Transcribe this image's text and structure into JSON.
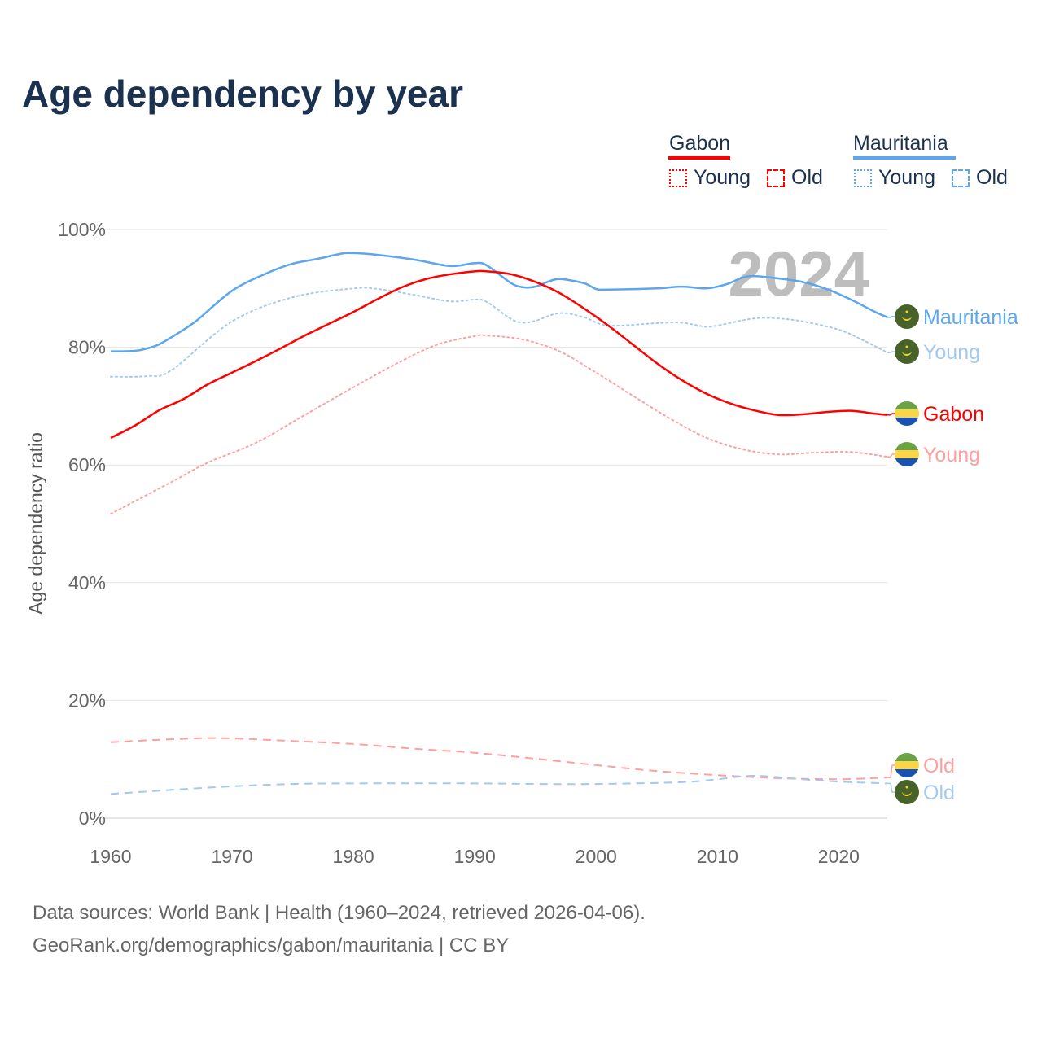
{
  "title": "Age dependency by year",
  "legend": {
    "gabon": {
      "label": "Gabon",
      "color": "#ff0000",
      "young": "Young",
      "old": "Old"
    },
    "mauritania": {
      "label": "Mauritania",
      "color": "#5ba6ec",
      "young": "Young",
      "old": "Old"
    }
  },
  "year_label": "2024",
  "footer": {
    "line1": "Data sources: World Bank | Health (1960–2024, retrieved 2026-04-06).",
    "line2": "GeoRank.org/demographics/gabon/mauritania | CC BY"
  },
  "chart_data": {
    "type": "line",
    "title": "Age dependency by year",
    "xlabel": "",
    "ylabel": "Age dependency ratio",
    "xlim": [
      1960,
      2024
    ],
    "ylim": [
      0,
      100
    ],
    "xticks": [
      1960,
      1970,
      1980,
      1990,
      2000,
      2010,
      2020
    ],
    "yticks": [
      0,
      20,
      40,
      60,
      80,
      100
    ],
    "ytick_labels": [
      "0%",
      "20%",
      "40%",
      "60%",
      "80%",
      "100%"
    ],
    "grid": true,
    "series": [
      {
        "name": "Mauritania",
        "end_label": "Mauritania",
        "color": "#5ba6ec",
        "style": "solid",
        "x": [
          1960,
          1962,
          1963,
          1964,
          1965,
          1967,
          1970,
          1973,
          1975,
          1977,
          1979,
          1980,
          1982,
          1985,
          1988,
          1990,
          1991,
          1993,
          1994,
          1995,
          1996,
          1997,
          1999,
          2000,
          2001,
          2005,
          2007,
          2009,
          2010,
          2011,
          2012,
          2013,
          2015,
          2017,
          2019,
          2021,
          2023,
          2024
        ],
        "y": [
          79.3,
          79.4,
          79.8,
          80.5,
          81.7,
          84.4,
          89.6,
          92.7,
          94.2,
          95.0,
          95.9,
          96.0,
          95.7,
          94.9,
          93.8,
          94.3,
          93.9,
          90.9,
          90.2,
          90.3,
          91.1,
          91.6,
          90.9,
          89.9,
          89.8,
          90.0,
          90.3,
          90.0,
          90.3,
          90.9,
          91.8,
          92.1,
          91.7,
          91.1,
          89.9,
          88.1,
          86.0,
          85.1
        ]
      },
      {
        "name": "Mauritania Young",
        "end_label": "Young",
        "color": "#a3c9f1",
        "style": "dotted",
        "x": [
          1960,
          1963,
          1965,
          1970,
          1975,
          1980,
          1982,
          1985,
          1988,
          1990,
          1991,
          1993,
          1994,
          1995,
          1997,
          1999,
          2001,
          2005,
          2007,
          2009,
          2010,
          2013,
          2015,
          2017,
          2020,
          2022,
          2024
        ],
        "y": [
          75.0,
          75.1,
          76.1,
          84.4,
          88.5,
          90.0,
          89.9,
          88.9,
          87.8,
          88.1,
          87.7,
          84.8,
          84.2,
          84.5,
          85.8,
          85.1,
          83.7,
          84.1,
          84.2,
          83.5,
          83.7,
          84.9,
          84.9,
          84.4,
          83.0,
          81.2,
          79.1
        ]
      },
      {
        "name": "Gabon",
        "end_label": "Gabon",
        "color": "#ff0000",
        "style": "solid",
        "x": [
          1960,
          1962,
          1964,
          1966,
          1968,
          1970,
          1972,
          1974,
          1976,
          1978,
          1980,
          1982,
          1984,
          1986,
          1988,
          1990,
          1991,
          1993,
          1995,
          1997,
          1999,
          2001,
          2003,
          2005,
          2007,
          2009,
          2011,
          2013,
          2015,
          2017,
          2019,
          2021,
          2023,
          2024
        ],
        "y": [
          64.6,
          66.7,
          69.3,
          71.2,
          73.7,
          75.7,
          77.7,
          79.8,
          82.0,
          84.0,
          86.0,
          88.2,
          90.2,
          91.6,
          92.4,
          92.9,
          92.9,
          92.4,
          91.1,
          89.2,
          86.6,
          83.7,
          80.5,
          77.3,
          74.5,
          72.2,
          70.5,
          69.3,
          68.5,
          68.6,
          69.0,
          69.2,
          68.7,
          68.5
        ]
      },
      {
        "name": "Gabon Young",
        "end_label": "Young",
        "color": "#ff9f9f",
        "style": "dotted",
        "x": [
          1960,
          1965,
          1968,
          1972,
          1976,
          1980,
          1984,
          1987,
          1990,
          1991,
          1994,
          1997,
          2000,
          2003,
          2006,
          2009,
          2012,
          2015,
          2018,
          2021,
          2024
        ],
        "y": [
          51.7,
          57.1,
          60.4,
          63.8,
          68.5,
          73.2,
          77.7,
          80.5,
          81.9,
          82.0,
          81.3,
          79.3,
          75.7,
          71.8,
          68.0,
          64.7,
          62.7,
          61.8,
          62.1,
          62.2,
          61.4
        ]
      },
      {
        "name": "Gabon Old",
        "end_label": "Old",
        "color": "#ff9f9f",
        "style": "dashed",
        "x": [
          1960,
          1965,
          1969,
          1975,
          1980,
          1985,
          1990,
          1995,
          2000,
          2005,
          2010,
          2015,
          2020,
          2024
        ],
        "y": [
          12.9,
          13.4,
          13.6,
          13.1,
          12.6,
          11.8,
          11.1,
          10.1,
          9.0,
          8.0,
          7.3,
          6.8,
          6.6,
          6.9
        ]
      },
      {
        "name": "Mauritania Old",
        "end_label": "Old",
        "color": "#a3c9f1",
        "style": "dashed",
        "x": [
          1960,
          1965,
          1970,
          1975,
          1980,
          1990,
          1995,
          2000,
          2007,
          2010,
          2013,
          2017,
          2020,
          2024
        ],
        "y": [
          4.1,
          4.8,
          5.4,
          5.8,
          5.9,
          5.9,
          5.8,
          5.8,
          6.1,
          6.6,
          7.2,
          6.6,
          6.2,
          5.9
        ]
      }
    ]
  }
}
